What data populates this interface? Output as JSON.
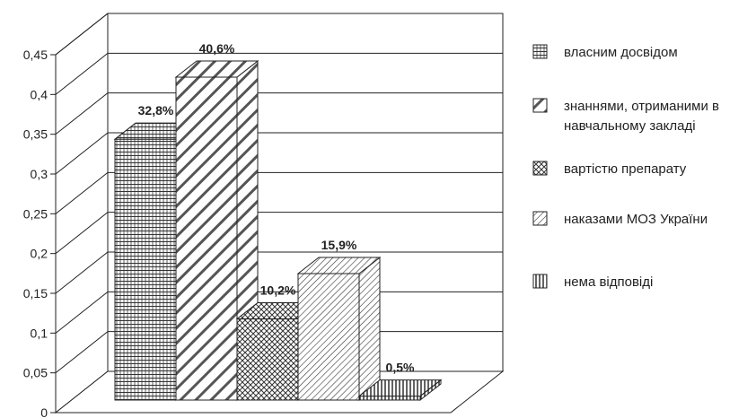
{
  "chart_data": {
    "type": "bar",
    "style": "3d-clustered",
    "categories": [
      ""
    ],
    "series": [
      {
        "name": "власним досвідом",
        "values": [
          0.328
        ],
        "label": "32,8%",
        "pattern": "brick"
      },
      {
        "name": "знаннями, отриманими в навчальному закладі",
        "legend_lines": [
          "знаннями, отриманими в",
          "навчальному закладі"
        ],
        "values": [
          0.406
        ],
        "label": "40,6%",
        "pattern": "wide-diagonal"
      },
      {
        "name": "вартістю препарату",
        "values": [
          0.102
        ],
        "label": "10,2%",
        "pattern": "crosshatch"
      },
      {
        "name": "наказами МОЗ України",
        "values": [
          0.159
        ],
        "label": "15,9%",
        "pattern": "dense-diagonal"
      },
      {
        "name": "нема відповіді",
        "values": [
          0.005
        ],
        "label": "0,5%",
        "pattern": "vertical"
      }
    ],
    "yticks": [
      "0",
      "0,05",
      "0,1",
      "0,15",
      "0,2",
      "0,25",
      "0,3",
      "0,35",
      "0,4",
      "0,45"
    ],
    "ylim": [
      0,
      0.45
    ],
    "grid": true,
    "legend_position": "right",
    "colors": {
      "fill": "#ffffff",
      "line": "#222222",
      "grid": "#222222"
    }
  }
}
